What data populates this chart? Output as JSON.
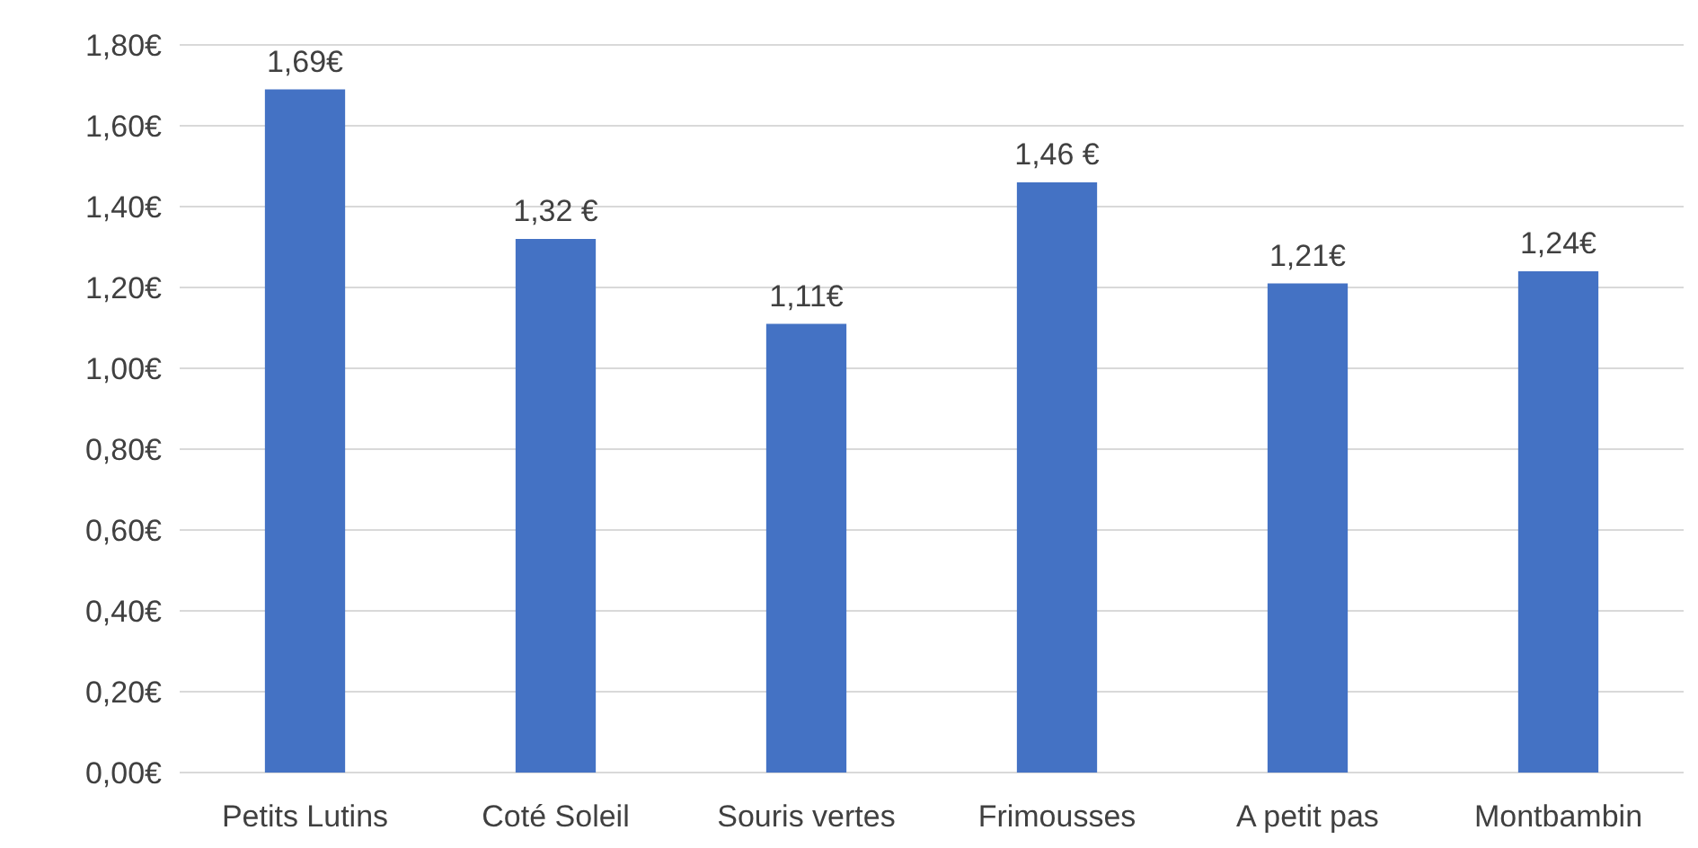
{
  "chart_data": {
    "type": "bar",
    "categories": [
      "Petits Lutins",
      "Coté Soleil",
      "Souris vertes",
      "Frimousses",
      "A petit pas",
      "Montbambin"
    ],
    "values": [
      1.69,
      1.32,
      1.11,
      1.46,
      1.21,
      1.24
    ],
    "value_labels": [
      "1,69€",
      "1,32 €",
      "1,11€",
      "1,46 €",
      "1,21€",
      "1,24€"
    ],
    "color": "#4472c4",
    "ylim": [
      0,
      1.8
    ],
    "yticks": [
      {
        "value": 0,
        "label": "0,00€"
      },
      {
        "value": 0.2,
        "label": "0,20€"
      },
      {
        "value": 0.4,
        "label": "0,40€"
      },
      {
        "value": 0.6,
        "label": "0,60€"
      },
      {
        "value": 0.8,
        "label": "0,80€"
      },
      {
        "value": 1,
        "label": "1,00€"
      },
      {
        "value": 1.2,
        "label": "1,20€"
      },
      {
        "value": 1.4,
        "label": "1,40€"
      },
      {
        "value": 1.6,
        "label": "1,60€"
      },
      {
        "value": 1.8,
        "label": "1,80€"
      }
    ],
    "grid": "y"
  }
}
